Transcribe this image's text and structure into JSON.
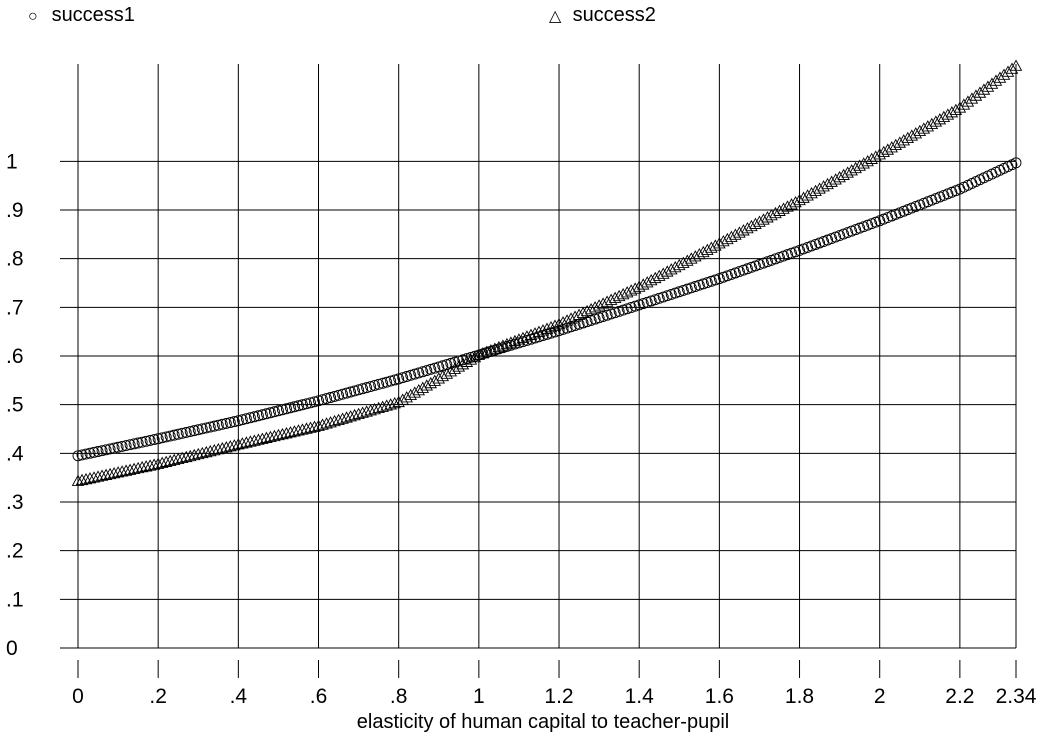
{
  "legend": {
    "items": [
      {
        "label": "success1",
        "marker": "circle",
        "glyph": "○"
      },
      {
        "label": "success2",
        "marker": "triangle",
        "glyph": "△"
      }
    ]
  },
  "chart_data": {
    "type": "scatter",
    "title": "",
    "xlabel": "elasticity of human capital to teacher-pupil",
    "ylabel": "",
    "xlim": [
      0,
      2.34
    ],
    "ylim": [
      0,
      1.2
    ],
    "grid": true,
    "legend_position": "top",
    "x_ticks": [
      0,
      0.2,
      0.4,
      0.6,
      0.8,
      1,
      1.2,
      1.4,
      1.6,
      1.8,
      2,
      2.2,
      2.34
    ],
    "x_tick_labels": [
      "0",
      ".2",
      ".4",
      ".6",
      ".8",
      "1",
      "1.2",
      "1.4",
      "1.6",
      "1.8",
      "2",
      "2.2",
      "2.34"
    ],
    "y_ticks": [
      0,
      0.1,
      0.2,
      0.3,
      0.4,
      0.5,
      0.6,
      0.7,
      0.8,
      0.9,
      1
    ],
    "y_tick_labels": [
      "0",
      ".1",
      ".2",
      ".3",
      ".4",
      ".5",
      ".6",
      ".7",
      ".8",
      ".9",
      "1"
    ],
    "series": [
      {
        "name": "success1",
        "marker": "circle",
        "x": [
          0,
          0.2,
          0.4,
          0.6,
          0.8,
          1.0,
          1.2,
          1.4,
          1.6,
          1.8,
          2.0,
          2.2,
          2.34
        ],
        "y": [
          0.395,
          0.43,
          0.467,
          0.508,
          0.553,
          0.602,
          0.652,
          0.705,
          0.759,
          0.817,
          0.878,
          0.943,
          0.997
        ]
      },
      {
        "name": "success2",
        "marker": "triangle",
        "x": [
          0,
          0.2,
          0.4,
          0.6,
          0.8,
          1.0,
          1.2,
          1.4,
          1.6,
          1.8,
          2.0,
          2.2,
          2.34
        ],
        "y": [
          0.343,
          0.378,
          0.418,
          0.456,
          0.505,
          0.602,
          0.665,
          0.742,
          0.831,
          0.92,
          1.014,
          1.11,
          1.196
        ]
      }
    ]
  }
}
